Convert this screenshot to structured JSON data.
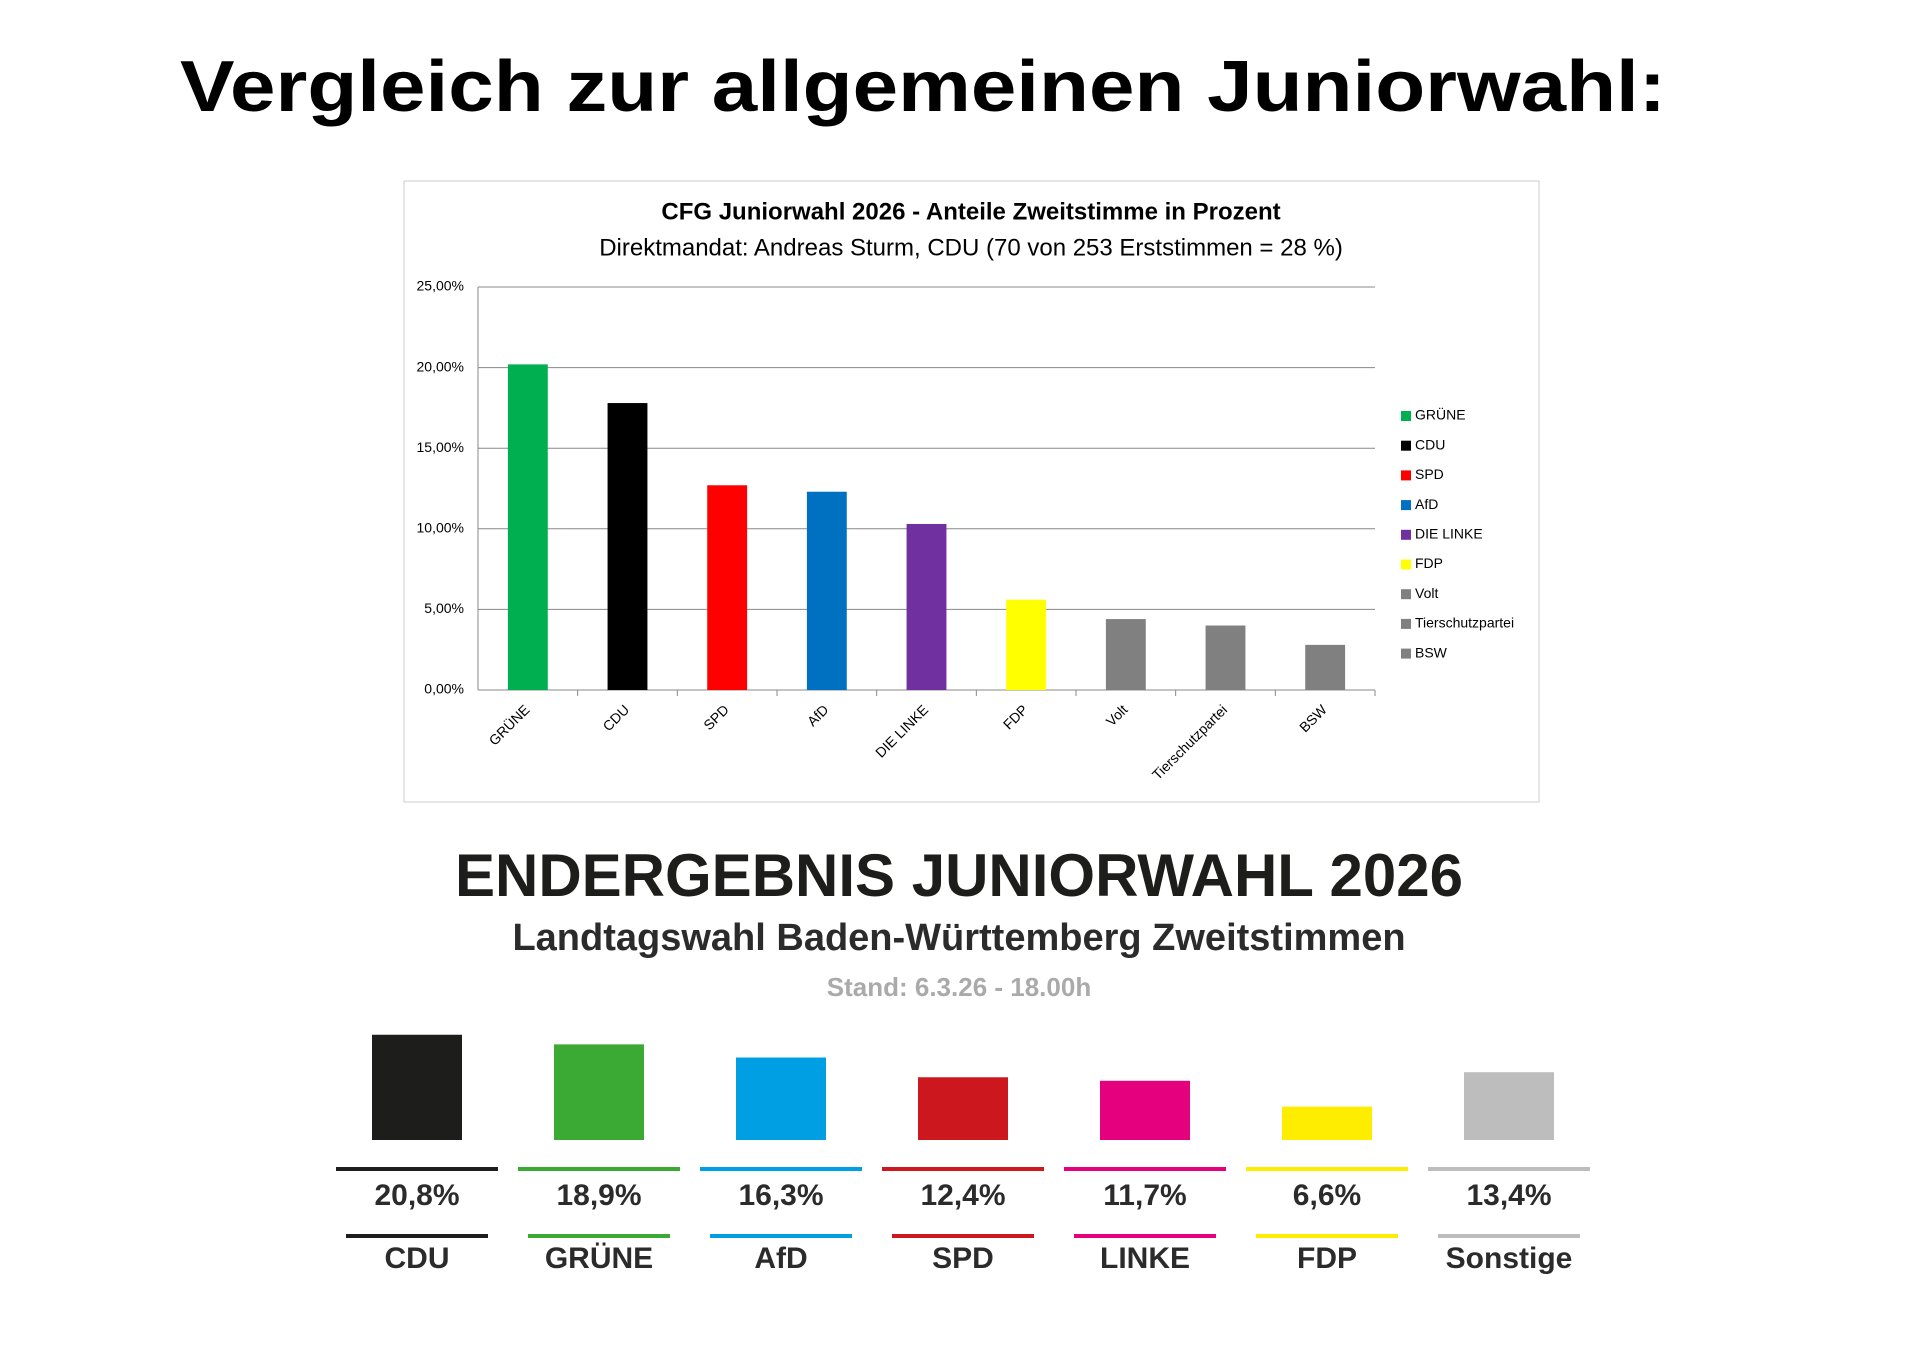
{
  "heading": "Vergleich zur allgemeinen Juniorwahl:",
  "chart_data": [
    {
      "type": "bar",
      "title": "CFG Juniorwahl 2026 - Anteile Zweitstimme in Prozent",
      "subtitle": "Direktmandat: Andreas Sturm, CDU (70 von 253 Erststimmen = 28 %)",
      "categories": [
        "GRÜNE",
        "CDU",
        "SPD",
        "AfD",
        "DIE LINKE",
        "FDP",
        "Volt",
        "Tierschutzpartei",
        "BSW"
      ],
      "values": [
        20.2,
        17.8,
        12.7,
        12.3,
        10.3,
        5.6,
        4.4,
        4.0,
        2.8
      ],
      "colors": [
        "#00b050",
        "#000000",
        "#ff0000",
        "#0070c0",
        "#7030a0",
        "#ffff00",
        "#808080",
        "#808080",
        "#808080"
      ],
      "ylim": [
        0,
        25
      ],
      "yticks": [
        {
          "value": 0,
          "label": "0,00%"
        },
        {
          "value": 5,
          "label": "5,00%"
        },
        {
          "value": 10,
          "label": "10,00%"
        },
        {
          "value": 15,
          "label": "15,00%"
        },
        {
          "value": 20,
          "label": "20,00%"
        },
        {
          "value": 25,
          "label": "25,00%"
        }
      ],
      "grid": true,
      "legend": "right"
    },
    {
      "type": "bar",
      "title": "ENDERGEBNIS JUNIORWAHL 2026",
      "subtitle": "Landtagswahl Baden-Württemberg Zweitstimmen",
      "note": "Stand: 6.3.26 - 18.00h",
      "categories": [
        "CDU",
        "GRÜNE",
        "AfD",
        "SPD",
        "LINKE",
        "FDP",
        "Sonstige"
      ],
      "values": [
        20.8,
        18.9,
        16.3,
        12.4,
        11.7,
        6.6,
        13.4
      ],
      "value_labels": [
        "20,8%",
        "18,9%",
        "16,3%",
        "12,4%",
        "11,7%",
        "6,6%",
        "13,4%"
      ],
      "colors": [
        "#1d1d1b",
        "#3aaa35",
        "#009fe3",
        "#cc171e",
        "#e5007d",
        "#ffed00",
        "#bdbdbd"
      ]
    }
  ]
}
